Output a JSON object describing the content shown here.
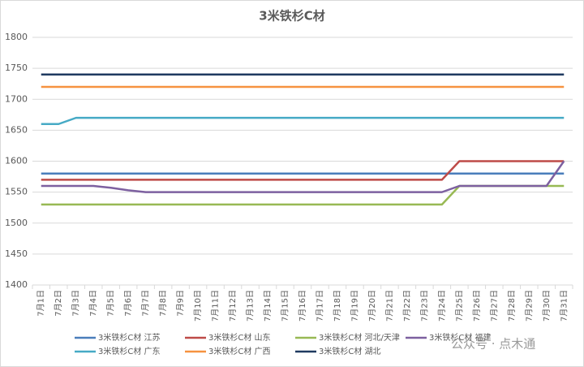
{
  "chart_data": {
    "type": "line",
    "title": "3米铁杉C材",
    "categories": [
      "7月1日",
      "7月2日",
      "7月3日",
      "7月4日",
      "7月5日",
      "7月6日",
      "7月7日",
      "7月8日",
      "7月9日",
      "7月10日",
      "7月11日",
      "7月12日",
      "7月13日",
      "7月14日",
      "7月15日",
      "7月16日",
      "7月17日",
      "7月18日",
      "7月19日",
      "7月20日",
      "7月21日",
      "7月22日",
      "7月23日",
      "7月24日",
      "7月25日",
      "7月26日",
      "7月27日",
      "7月28日",
      "7月29日",
      "7月30日",
      "7月31日"
    ],
    "series": [
      {
        "name": "3米铁杉C材 江苏",
        "color": "#4a7ebb",
        "values": [
          1580,
          1580,
          1580,
          1580,
          1580,
          1580,
          1580,
          1580,
          1580,
          1580,
          1580,
          1580,
          1580,
          1580,
          1580,
          1580,
          1580,
          1580,
          1580,
          1580,
          1580,
          1580,
          1580,
          1580,
          1580,
          1580,
          1580,
          1580,
          1580,
          1580,
          1580
        ]
      },
      {
        "name": "3米铁杉C材 山东",
        "color": "#be4b48",
        "values": [
          1570,
          1570,
          1570,
          1570,
          1570,
          1570,
          1570,
          1570,
          1570,
          1570,
          1570,
          1570,
          1570,
          1570,
          1570,
          1570,
          1570,
          1570,
          1570,
          1570,
          1570,
          1570,
          1570,
          1570,
          1600,
          1600,
          1600,
          1600,
          1600,
          1600,
          1600
        ]
      },
      {
        "name": "3米铁杉C材 河北/天津",
        "color": "#98b954",
        "values": [
          1530,
          1530,
          1530,
          1530,
          1530,
          1530,
          1530,
          1530,
          1530,
          1530,
          1530,
          1530,
          1530,
          1530,
          1530,
          1530,
          1530,
          1530,
          1530,
          1530,
          1530,
          1530,
          1530,
          1530,
          1560,
          1560,
          1560,
          1560,
          1560,
          1560,
          1560
        ]
      },
      {
        "name": "3米铁杉C材 福建",
        "color": "#7d60a0",
        "values": [
          1560,
          1560,
          1560,
          1560,
          1557,
          1553,
          1550,
          1550,
          1550,
          1550,
          1550,
          1550,
          1550,
          1550,
          1550,
          1550,
          1550,
          1550,
          1550,
          1550,
          1550,
          1550,
          1550,
          1550,
          1560,
          1560,
          1560,
          1560,
          1560,
          1560,
          1600
        ]
      },
      {
        "name": "3米铁杉C材 广东",
        "color": "#46aac5",
        "values": [
          1660,
          1660,
          1670,
          1670,
          1670,
          1670,
          1670,
          1670,
          1670,
          1670,
          1670,
          1670,
          1670,
          1670,
          1670,
          1670,
          1670,
          1670,
          1670,
          1670,
          1670,
          1670,
          1670,
          1670,
          1670,
          1670,
          1670,
          1670,
          1670,
          1670,
          1670
        ]
      },
      {
        "name": "3米铁杉C材 广西",
        "color": "#f69240",
        "values": [
          1720,
          1720,
          1720,
          1720,
          1720,
          1720,
          1720,
          1720,
          1720,
          1720,
          1720,
          1720,
          1720,
          1720,
          1720,
          1720,
          1720,
          1720,
          1720,
          1720,
          1720,
          1720,
          1720,
          1720,
          1720,
          1720,
          1720,
          1720,
          1720,
          1720,
          1720
        ]
      },
      {
        "name": "3米铁杉C材 湖北",
        "color": "#1f3a60",
        "values": [
          1740,
          1740,
          1740,
          1740,
          1740,
          1740,
          1740,
          1740,
          1740,
          1740,
          1740,
          1740,
          1740,
          1740,
          1740,
          1740,
          1740,
          1740,
          1740,
          1740,
          1740,
          1740,
          1740,
          1740,
          1740,
          1740,
          1740,
          1740,
          1740,
          1740,
          1740
        ]
      }
    ],
    "ylim": [
      1400,
      1800
    ],
    "yticks": [
      1400,
      1450,
      1500,
      1550,
      1600,
      1650,
      1700,
      1750,
      1800
    ],
    "grid": true,
    "legend": "bottom",
    "watermark": "公众号 · 点木通"
  }
}
